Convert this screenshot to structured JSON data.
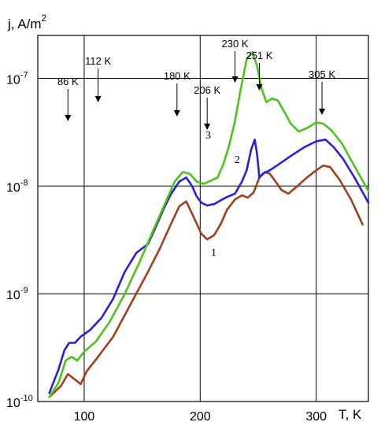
{
  "chart_data": {
    "type": "line",
    "title": "",
    "ylabel": "j, A/m",
    "ylabel_sup": "2",
    "xlabel": "T, K",
    "xlim": [
      60,
      345
    ],
    "ylim": [
      1e-10,
      2.5e-07
    ],
    "y_scale": "log",
    "grid": true,
    "x_ticks": [
      100,
      200,
      300
    ],
    "y_ticks": [
      {
        "value": 1e-10,
        "base": "10",
        "exp": "-10"
      },
      {
        "value": 1e-09,
        "base": "10",
        "exp": "-9"
      },
      {
        "value": 1e-08,
        "base": "10",
        "exp": "-8"
      },
      {
        "value": 1e-07,
        "base": "10",
        "exp": "-7"
      }
    ],
    "annotations": [
      {
        "label": "86 K",
        "x": 86
      },
      {
        "label": "112 K",
        "x": 112
      },
      {
        "label": "180 K",
        "x": 180
      },
      {
        "label": "206 K",
        "x": 206
      },
      {
        "label": "230 K",
        "x": 230
      },
      {
        "label": "251 K",
        "x": 251
      },
      {
        "label": "305 K",
        "x": 305
      }
    ],
    "series": [
      {
        "name": "1",
        "color": "#a0401c",
        "points": [
          [
            70,
            1.1e-10
          ],
          [
            80,
            1.4e-10
          ],
          [
            86,
            1.8e-10
          ],
          [
            92,
            1.6e-10
          ],
          [
            97,
            1.45e-10
          ],
          [
            102,
            1.9e-10
          ],
          [
            112,
            2.6e-10
          ],
          [
            125,
            4e-10
          ],
          [
            140,
            8e-10
          ],
          [
            155,
            1.6e-09
          ],
          [
            165,
            2.6e-09
          ],
          [
            175,
            4.5e-09
          ],
          [
            182,
            6.5e-09
          ],
          [
            188,
            7.2e-09
          ],
          [
            195,
            5e-09
          ],
          [
            201,
            3.6e-09
          ],
          [
            206,
            3.2e-09
          ],
          [
            212,
            3.5e-09
          ],
          [
            218,
            4.5e-09
          ],
          [
            223,
            6e-09
          ],
          [
            230,
            7.5e-09
          ],
          [
            236,
            8.2e-09
          ],
          [
            241,
            7.8e-09
          ],
          [
            246,
            8.7e-09
          ],
          [
            251,
            1.2e-08
          ],
          [
            256,
            1.35e-08
          ],
          [
            260,
            1.3e-08
          ],
          [
            265,
            1.1e-08
          ],
          [
            270,
            9.2e-09
          ],
          [
            276,
            8.5e-09
          ],
          [
            283,
            9.8e-09
          ],
          [
            292,
            1.2e-08
          ],
          [
            300,
            1.4e-08
          ],
          [
            306,
            1.55e-08
          ],
          [
            312,
            1.5e-08
          ],
          [
            320,
            1.15e-08
          ],
          [
            330,
            7.5e-09
          ],
          [
            340,
            4.4e-09
          ],
          [
            350,
            2.6e-09
          ],
          [
            357,
            1.8e-09
          ]
        ]
      },
      {
        "name": "2",
        "color": "#2a1ee0",
        "points": [
          [
            70,
            1.2e-10
          ],
          [
            78,
            2e-10
          ],
          [
            83,
            3e-10
          ],
          [
            87,
            3.5e-10
          ],
          [
            92,
            3.5e-10
          ],
          [
            97,
            4e-10
          ],
          [
            105,
            4.6e-10
          ],
          [
            115,
            6e-10
          ],
          [
            125,
            9e-10
          ],
          [
            135,
            1.6e-09
          ],
          [
            145,
            2.4e-09
          ],
          [
            155,
            2.9e-09
          ],
          [
            160,
            3.8e-09
          ],
          [
            168,
            6e-09
          ],
          [
            175,
            8.5e-09
          ],
          [
            182,
            1.1e-08
          ],
          [
            188,
            1.2e-08
          ],
          [
            193,
            1e-08
          ],
          [
            197,
            8e-09
          ],
          [
            201,
            7e-09
          ],
          [
            206,
            6.6e-09
          ],
          [
            212,
            6.8e-09
          ],
          [
            218,
            7.4e-09
          ],
          [
            223,
            7.9e-09
          ],
          [
            230,
            8.5e-09
          ],
          [
            236,
            1.1e-08
          ],
          [
            240,
            1.4e-08
          ],
          [
            244,
            2.2e-08
          ],
          [
            247,
            2.7e-08
          ],
          [
            249,
            2e-08
          ],
          [
            251,
            1.2e-08
          ],
          [
            254,
            1.3e-08
          ],
          [
            260,
            1.4e-08
          ],
          [
            268,
            1.6e-08
          ],
          [
            278,
            1.9e-08
          ],
          [
            290,
            2.3e-08
          ],
          [
            300,
            2.6e-08
          ],
          [
            308,
            2.7e-08
          ],
          [
            315,
            2.3e-08
          ],
          [
            323,
            1.8e-08
          ],
          [
            333,
            1.2e-08
          ],
          [
            345,
            7e-09
          ],
          [
            357,
            3.8e-09
          ]
        ]
      },
      {
        "name": "3",
        "color": "#4cc41c",
        "points": [
          [
            70,
            1.1e-10
          ],
          [
            78,
            1.5e-10
          ],
          [
            84,
            2.4e-10
          ],
          [
            89,
            2.6e-10
          ],
          [
            94,
            2.4e-10
          ],
          [
            100,
            2.9e-10
          ],
          [
            110,
            3.6e-10
          ],
          [
            122,
            5.5e-10
          ],
          [
            135,
            1e-09
          ],
          [
            148,
            2e-09
          ],
          [
            160,
            4e-09
          ],
          [
            170,
            7e-09
          ],
          [
            178,
            1.1e-08
          ],
          [
            185,
            1.35e-08
          ],
          [
            191,
            1.3e-08
          ],
          [
            197,
            1.1e-08
          ],
          [
            203,
            1.05e-08
          ],
          [
            209,
            1.12e-08
          ],
          [
            215,
            1.2e-08
          ],
          [
            220,
            1.6e-08
          ],
          [
            225,
            2.4e-08
          ],
          [
            230,
            4e-08
          ],
          [
            235,
            8e-08
          ],
          [
            240,
            1.5e-07
          ],
          [
            245,
            1.75e-07
          ],
          [
            249,
            1.3e-07
          ],
          [
            253,
            8e-08
          ],
          [
            257,
            6e-08
          ],
          [
            262,
            6.5e-08
          ],
          [
            267,
            6.2e-08
          ],
          [
            272,
            5e-08
          ],
          [
            278,
            3.8e-08
          ],
          [
            285,
            3.2e-08
          ],
          [
            293,
            3.5e-08
          ],
          [
            300,
            3.9e-08
          ],
          [
            306,
            3.8e-08
          ],
          [
            313,
            3.3e-08
          ],
          [
            322,
            2.5e-08
          ],
          [
            332,
            1.6e-08
          ],
          [
            345,
            9e-09
          ],
          [
            357,
            5.2e-09
          ]
        ]
      }
    ]
  }
}
